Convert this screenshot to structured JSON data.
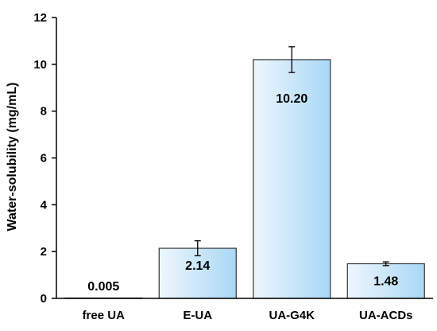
{
  "chart_data": {
    "type": "bar",
    "title": "",
    "xlabel": "",
    "ylabel": "Water-solubility (mg/mL)",
    "ylim": [
      0,
      12
    ],
    "yticks": [
      0,
      2,
      4,
      6,
      8,
      10,
      12
    ],
    "grid": false,
    "categories": [
      "free UA",
      "E-UA",
      "UA-G4K",
      "UA-ACDs"
    ],
    "values": [
      0.005,
      2.14,
      10.2,
      1.48
    ],
    "data_labels": [
      "0.005",
      "2.14",
      "10.20",
      "1.48"
    ],
    "error": [
      0,
      0.32,
      0.55,
      0.08
    ],
    "colors": {
      "bar_light": "#eef6fd",
      "bar_dark": "#a9d8f5",
      "bar_border": "#333333",
      "axis": "#000000"
    }
  }
}
